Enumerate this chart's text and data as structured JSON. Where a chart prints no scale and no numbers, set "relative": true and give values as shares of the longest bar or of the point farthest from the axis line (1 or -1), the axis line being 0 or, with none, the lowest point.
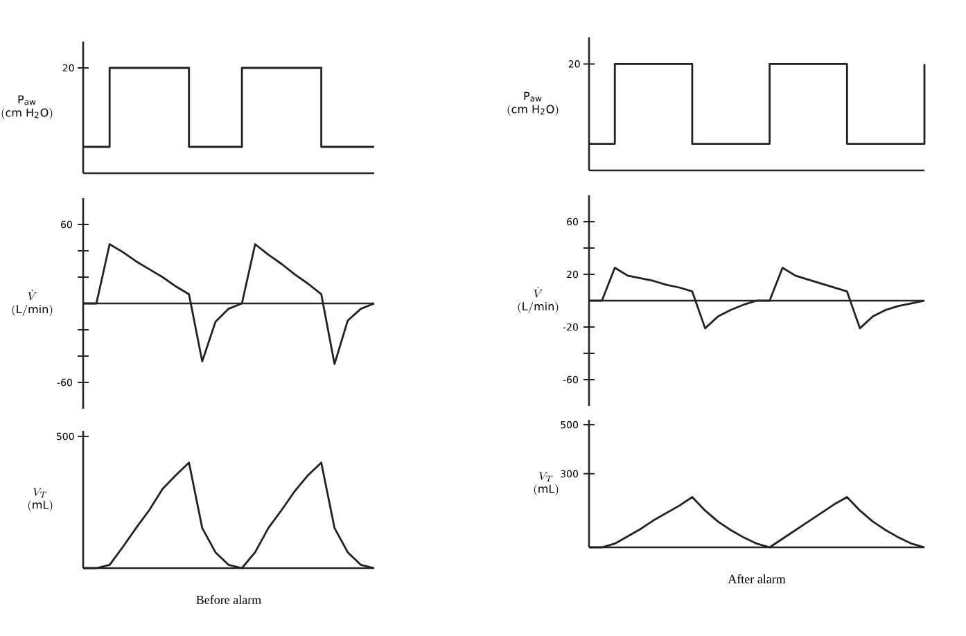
{
  "chart_data": [
    {
      "type": "step",
      "relative": true,
      "ylabel": "\\begin{array}{c}\\mathrm{P_{aw}}\\\\ \\mathrm{(cm\\ H_2O)}\\end{array}",
      "tick_labels": false,
      "annotations": [
        "20"
      ],
      "categories": [
        null,
        null,
        null,
        null,
        null,
        null,
        null,
        null,
        null,
        null,
        null,
        null
      ],
      "series": [
        {
          "color": "#222222",
          "values": [
            0.25,
            1,
            1,
            1,
            0.25,
            0.25,
            1,
            1,
            1,
            0.25,
            0.25,
            0.25
          ]
        }
      ]
    },
    {
      "type": "line",
      "ylabel": "\\begin{array}{c}\\dot{V}\\\\ \\mathrm{(L/min)}\\end{array}",
      "ylim": [
        -80,
        80
      ],
      "yticks": [
        -60,
        {
          "value": -40,
          "label": null
        },
        {
          "value": -20,
          "label": null
        },
        {
          "value": 20,
          "label": null
        },
        {
          "value": 40,
          "label": null
        },
        60
      ],
      "tick_labels": "y",
      "categories": [
        null,
        null,
        null,
        null,
        null,
        null,
        null,
        null,
        null,
        null,
        null,
        null,
        null,
        null,
        null,
        null,
        null,
        null,
        null,
        null,
        null,
        null,
        null
      ],
      "series": [
        {
          "color": "#222222",
          "values": [
            0,
            0,
            45,
            39,
            32,
            26,
            20,
            13,
            7,
            -44,
            -14,
            -4,
            0,
            45,
            37,
            30,
            22,
            15,
            7,
            -46,
            -13,
            -4,
            0
          ]
        }
      ]
    },
    {
      "type": "line",
      "relative": true,
      "ylabel": "\\begin{array}{c}V_T\\\\ \\mathrm{(mL)}\\end{array}",
      "xlabel": "Before alarm",
      "tick_labels": false,
      "annotations": [
        "500"
      ],
      "categories": [
        null,
        null,
        null,
        null,
        null,
        null,
        null,
        null,
        null,
        null,
        null,
        null,
        null,
        null,
        null,
        null,
        null,
        null,
        null,
        null,
        null,
        null,
        null
      ],
      "series": [
        {
          "color": "#222222",
          "values": [
            0,
            0,
            0.03,
            0.2,
            0.38,
            0.55,
            0.75,
            0.88,
            1,
            0.38,
            0.15,
            0.03,
            0,
            0.15,
            0.38,
            0.55,
            0.73,
            0.88,
            1,
            0.38,
            0.15,
            0.03,
            0
          ]
        }
      ]
    },
    {
      "type": "step",
      "relative": true,
      "ylabel": "\\begin{array}{c}\\mathrm{P_{aw}}\\\\ \\mathrm{(cm\\ H_2O)}\\end{array}",
      "tick_labels": false,
      "annotations": [
        "20"
      ],
      "categories": [
        null,
        null,
        null,
        null,
        null,
        null,
        null,
        null,
        null,
        null,
        null,
        null,
        null,
        null
      ],
      "series": [
        {
          "color": "#222222",
          "values": [
            0.25,
            1,
            1,
            1,
            0.25,
            0.25,
            0.25,
            1,
            1,
            1,
            0.25,
            0.25,
            0.25,
            1
          ]
        }
      ]
    },
    {
      "type": "line",
      "ylabel": "\\begin{array}{c}\\dot{V}\\\\ \\mathrm{(L/min)}\\end{array}",
      "ylim": [
        -80,
        80
      ],
      "yticks": [
        -60,
        {
          "value": -40,
          "label": null
        },
        -20,
        20,
        {
          "value": 40,
          "label": null
        },
        60
      ],
      "tick_labels": "y",
      "categories": [
        null,
        null,
        null,
        null,
        null,
        null,
        null,
        null,
        null,
        null,
        null,
        null,
        null,
        null,
        null,
        null,
        null,
        null,
        null,
        null,
        null,
        null,
        null,
        null,
        null,
        null,
        null
      ],
      "series": [
        {
          "color": "#222222",
          "values": [
            0,
            0,
            25,
            19,
            17,
            15,
            12,
            10,
            7,
            -21,
            -12,
            -7,
            -3,
            0,
            0,
            25,
            19,
            16,
            13,
            10,
            7,
            -21,
            -12,
            -7,
            -4,
            -2,
            0
          ]
        }
      ]
    },
    {
      "type": "line",
      "ylabel": "\\begin{array}{c}V_T\\\\ \\mathrm{(mL)}\\end{array}",
      "xlabel": "After alarm",
      "ylim": [
        0,
        520
      ],
      "yticks": [
        300,
        500
      ],
      "tick_labels": "y",
      "categories": [
        null,
        null,
        null,
        null,
        null,
        null,
        null,
        null,
        null,
        null,
        null,
        null,
        null,
        null,
        null,
        null,
        null,
        null,
        null,
        null,
        null,
        null,
        null,
        null,
        null,
        null,
        null
      ],
      "series": [
        {
          "color": "#222222",
          "values": [
            0,
            0,
            15,
            45,
            75,
            110,
            140,
            170,
            205,
            150,
            105,
            70,
            40,
            15,
            0,
            35,
            70,
            105,
            140,
            175,
            205,
            150,
            105,
            70,
            40,
            15,
            0
          ]
        }
      ]
    }
  ]
}
